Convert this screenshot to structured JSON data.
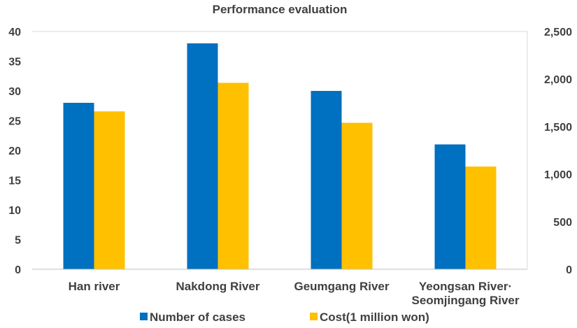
{
  "chart_data": {
    "type": "bar",
    "title": "Performance evaluation",
    "categories": [
      [
        "Han river"
      ],
      [
        "Nakdong River"
      ],
      [
        "Geumgang River"
      ],
      [
        "Yeongsan River·",
        "Seomjingang River"
      ]
    ],
    "series": [
      {
        "name": "Number of cases",
        "axis": "left",
        "color": "#0070C0",
        "values": [
          28,
          38,
          30,
          21
        ]
      },
      {
        "name": "Cost(1 million won)",
        "axis": "right",
        "color": "#FFC000",
        "values": [
          1660,
          1960,
          1540,
          1080
        ]
      }
    ],
    "y_left": {
      "min": 0,
      "max": 40,
      "step": 5,
      "ticks": [
        "0",
        "5",
        "10",
        "15",
        "20",
        "25",
        "30",
        "35",
        "40"
      ]
    },
    "y_right": {
      "min": 0,
      "max": 2500,
      "step": 500,
      "ticks": [
        "0",
        "500",
        "1,000",
        "1,500",
        "2,000",
        "2,500"
      ]
    },
    "grid": false,
    "legend_position": "bottom"
  }
}
